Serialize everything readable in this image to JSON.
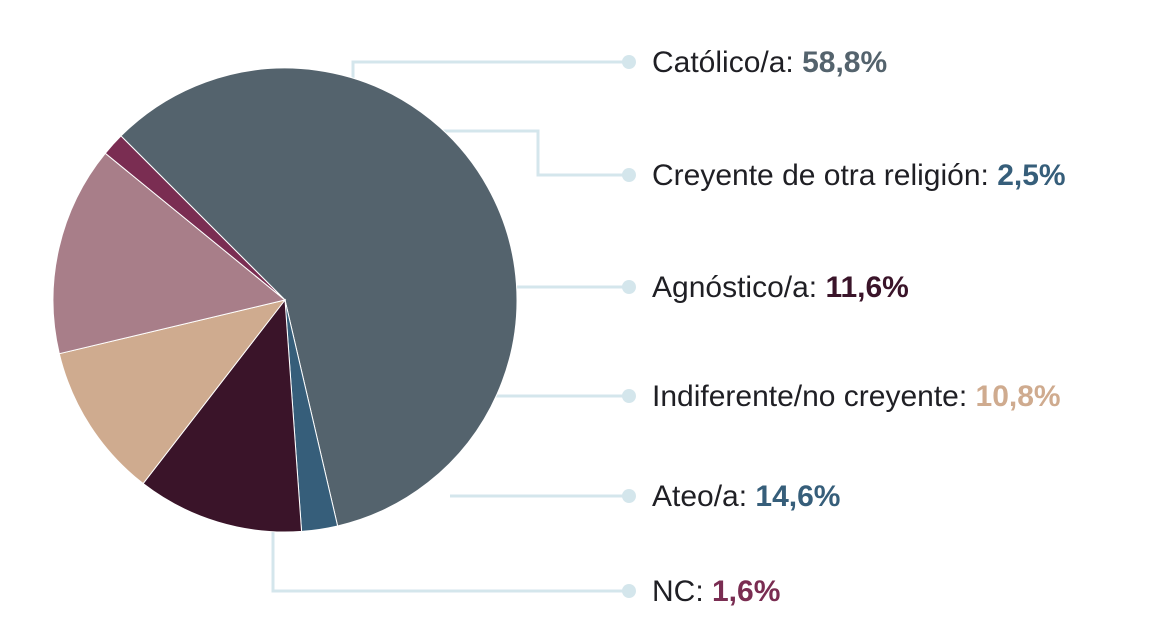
{
  "chart_data": {
    "type": "pie",
    "title": "",
    "slices": [
      {
        "label": "Católico/a:",
        "value": 58.8,
        "value_text": "58,8%",
        "color": "#54636d",
        "value_color": "#54636d"
      },
      {
        "label": "Creyente de otra religión:",
        "value": 2.5,
        "value_text": "2,5%",
        "color": "#365e7a",
        "value_color": "#365e7a"
      },
      {
        "label": "Agnóstico/a:",
        "value": 11.6,
        "value_text": "11,6%",
        "color": "#3a1429",
        "value_color": "#3a1429"
      },
      {
        "label": "Indiferente/no creyente:",
        "value": 10.8,
        "value_text": "10,8%",
        "color": "#cfab8f",
        "value_color": "#cfab8f"
      },
      {
        "label": "Ateo/a:",
        "value": 14.6,
        "value_text": "14,6%",
        "color": "#a87e89",
        "value_color": "#365e7a"
      },
      {
        "label": "NC:",
        "value": 1.6,
        "value_text": "1,6%",
        "color": "#7a2d52",
        "value_color": "#7a2d52"
      }
    ],
    "legend_position": "right"
  }
}
